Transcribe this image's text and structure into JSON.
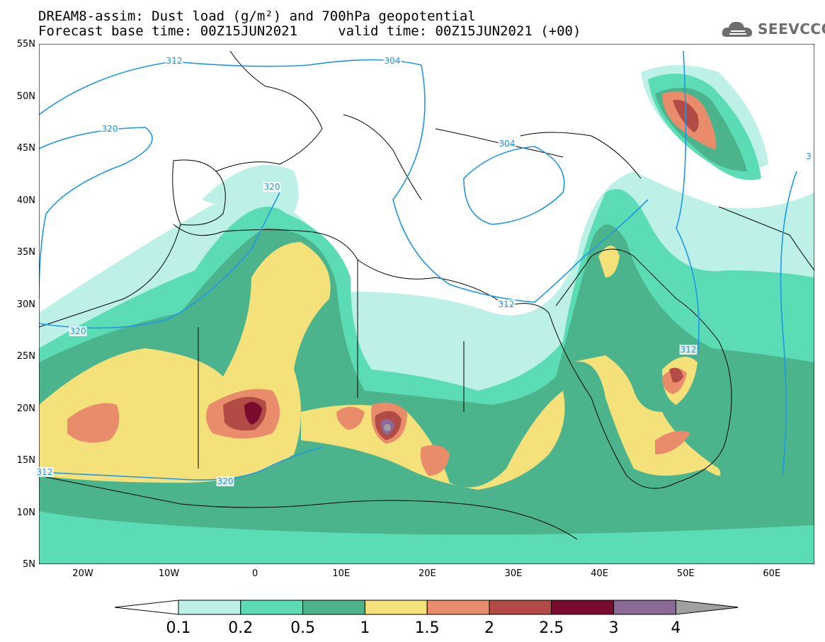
{
  "header": {
    "line1": "DREAM8-assim: Dust load (g/m²) and 700hPa geopotential",
    "line2": "Forecast base time: 00Z15JUN2021     valid time: 00Z15JUN2021 (+00)"
  },
  "logo": {
    "text": "SEEVCCC",
    "icon": "cloud-icon"
  },
  "axes": {
    "lat_labels": [
      "55N",
      "50N",
      "45N",
      "40N",
      "35N",
      "30N",
      "25N",
      "20N",
      "15N",
      "10N",
      "5N"
    ],
    "lon_labels": [
      "20W",
      "10W",
      "0",
      "10E",
      "20E",
      "30E",
      "40E",
      "50E",
      "60E"
    ]
  },
  "contour_labels": [
    "312",
    "304",
    "320",
    "312",
    "320",
    "304",
    "320",
    "312",
    "320",
    "312",
    "3"
  ],
  "colorbar": {
    "ticks": [
      "0.1",
      "0.2",
      "0.5",
      "1",
      "1.5",
      "2",
      "2.5",
      "3",
      "4"
    ],
    "colors": [
      "#bdf0e6",
      "#5cdcb4",
      "#4cb48c",
      "#f5e17a",
      "#e98c6c",
      "#b24a45",
      "#7a0a2e",
      "#8c6a98",
      "#a0a0a0"
    ]
  },
  "colors": {
    "contour": "#1e96e6",
    "land_border": "#000000",
    "water": "#ffffff"
  }
}
